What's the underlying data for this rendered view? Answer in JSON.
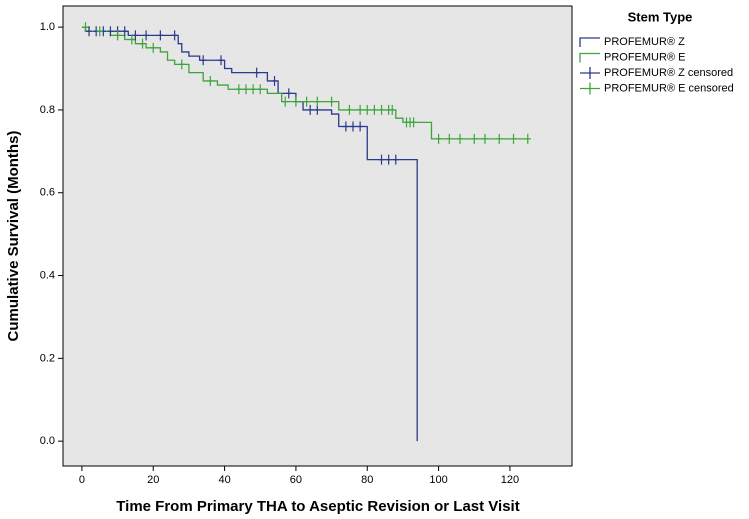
{
  "chart_data": {
    "type": "survival",
    "xlabel": "Time From Primary THA to Aseptic Revision or Last Visit",
    "ylabel": "Cumulative Survival (Months)",
    "legend_title": "Stem Type",
    "legend_position": "right",
    "xlim": [
      -5.3,
      137.4
    ],
    "ylim": [
      -0.06,
      1.051
    ],
    "xticks": [
      0,
      20,
      40,
      60,
      80,
      100,
      120
    ],
    "yticks": [
      {
        "value": 0,
        "label": "0.0"
      },
      0.2,
      0.4,
      0.6,
      0.8,
      {
        "value": 1,
        "label": "1.0"
      }
    ],
    "series": [
      {
        "name": "PROFEMUR® Z",
        "color": "#2b3a8e",
        "marker": "none",
        "x": [
          0,
          1,
          1,
          13,
          13,
          27,
          27,
          28,
          28,
          30,
          30,
          33,
          33,
          40,
          40,
          42,
          42,
          52,
          52,
          55,
          55,
          60,
          60,
          62,
          62,
          70,
          70,
          72,
          72,
          80,
          80,
          94,
          94
        ],
        "values": [
          1.0,
          1.0,
          0.99,
          0.99,
          0.98,
          0.98,
          0.96,
          0.96,
          0.94,
          0.94,
          0.93,
          0.93,
          0.92,
          0.92,
          0.9,
          0.9,
          0.89,
          0.89,
          0.87,
          0.87,
          0.84,
          0.84,
          0.82,
          0.82,
          0.8,
          0.8,
          0.79,
          0.79,
          0.76,
          0.76,
          0.68,
          0.68,
          0.0
        ]
      },
      {
        "name": "PROFEMUR® E",
        "color": "#3da53b",
        "marker": "none",
        "x": [
          0,
          2,
          2,
          8,
          8,
          12,
          12,
          15,
          15,
          18,
          18,
          22,
          22,
          24,
          24,
          26,
          26,
          30,
          30,
          34,
          34,
          38,
          38,
          41,
          41,
          52,
          52,
          56,
          56,
          72,
          72,
          88,
          88,
          90,
          90,
          98,
          98,
          125
        ],
        "values": [
          1.0,
          1.0,
          0.99,
          0.99,
          0.98,
          0.98,
          0.97,
          0.97,
          0.96,
          0.96,
          0.95,
          0.95,
          0.94,
          0.94,
          0.92,
          0.92,
          0.91,
          0.91,
          0.89,
          0.89,
          0.87,
          0.87,
          0.86,
          0.86,
          0.85,
          0.85,
          0.84,
          0.84,
          0.82,
          0.82,
          0.8,
          0.8,
          0.78,
          0.78,
          0.77,
          0.77,
          0.73,
          0.73
        ]
      },
      {
        "name": "PROFEMUR® Z censored",
        "color": "#2b3a8e",
        "marker": "plus",
        "x": [
          2,
          4,
          6,
          8,
          10,
          12,
          15,
          18,
          22,
          26,
          34,
          39,
          49,
          54,
          58,
          64,
          66,
          74,
          76,
          78,
          84,
          86,
          88
        ],
        "values": [
          0.99,
          0.99,
          0.99,
          0.99,
          0.99,
          0.99,
          0.98,
          0.98,
          0.98,
          0.98,
          0.92,
          0.92,
          0.89,
          0.87,
          0.84,
          0.8,
          0.8,
          0.76,
          0.76,
          0.76,
          0.68,
          0.68,
          0.68
        ]
      },
      {
        "name": "PROFEMUR® E censored",
        "color": "#3da53b",
        "marker": "plus",
        "x": [
          1,
          5,
          10,
          14,
          17,
          20,
          28,
          36,
          44,
          46,
          48,
          50,
          57,
          60,
          63,
          66,
          70,
          75,
          78,
          80,
          82,
          84,
          86,
          87,
          91,
          92,
          93,
          100,
          103,
          106,
          110,
          113,
          117,
          121,
          125
        ],
        "values": [
          1.0,
          0.99,
          0.98,
          0.97,
          0.96,
          0.95,
          0.91,
          0.87,
          0.85,
          0.85,
          0.85,
          0.85,
          0.82,
          0.82,
          0.82,
          0.82,
          0.82,
          0.8,
          0.8,
          0.8,
          0.8,
          0.8,
          0.8,
          0.8,
          0.77,
          0.77,
          0.77,
          0.73,
          0.73,
          0.73,
          0.73,
          0.73,
          0.73,
          0.73,
          0.73
        ]
      }
    ]
  }
}
